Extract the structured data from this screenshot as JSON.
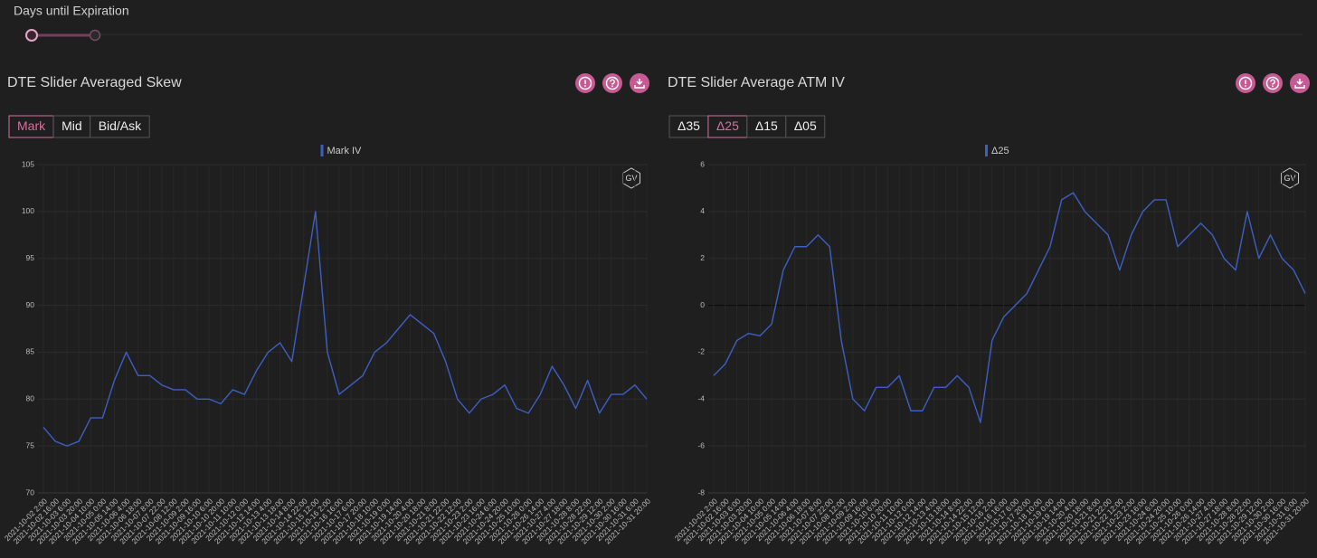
{
  "header": {
    "slider_label": "Days until Expiration"
  },
  "panels": [
    {
      "title": "DTE Slider Averaged Skew",
      "buttons": [
        "Mark",
        "Mid",
        "Bid/Ask"
      ],
      "active_button": 0,
      "watermark": "GV"
    },
    {
      "title": "DTE Slider Average ATM IV",
      "buttons": [
        "Δ35",
        "Δ25",
        "Δ15",
        "Δ05"
      ],
      "active_button": 1,
      "watermark": "GV"
    }
  ],
  "chart_data": [
    {
      "type": "line",
      "categories": [
        "2021-10-02 2:00",
        "2021-10-02 16:00",
        "2021-10-03 6:00",
        "2021-10-03 20:00",
        "2021-10-04 10:00",
        "2021-10-05 0:00",
        "2021-10-05 14:00",
        "2021-10-06 4:00",
        "2021-10-06 18:00",
        "2021-10-07 8:00",
        "2021-10-07 22:00",
        "2021-10-08 12:00",
        "2021-10-09 2:00",
        "2021-10-09 16:00",
        "2021-10-10 6:00",
        "2021-10-10 20:00",
        "2021-10-11 10:00",
        "2021-10-12 0:00",
        "2021-10-12 14:00",
        "2021-10-13 4:00",
        "2021-10-13 18:00",
        "2021-10-14 8:00",
        "2021-10-14 22:00",
        "2021-10-15 12:00",
        "2021-10-16 2:00",
        "2021-10-16 16:00",
        "2021-10-17 6:00",
        "2021-10-17 20:00",
        "2021-10-18 10:00",
        "2021-10-19 0:00",
        "2021-10-19 14:00",
        "2021-10-20 4:00",
        "2021-10-20 18:00",
        "2021-10-21 8:00",
        "2021-10-21 22:00",
        "2021-10-22 12:00",
        "2021-10-23 2:00",
        "2021-10-23 16:00",
        "2021-10-24 6:00",
        "2021-10-24 20:00",
        "2021-10-25 10:00",
        "2021-10-26 0:00",
        "2021-10-26 14:00",
        "2021-10-27 4:00",
        "2021-10-27 18:00",
        "2021-10-28 8:00",
        "2021-10-28 22:00",
        "2021-10-29 12:00",
        "2021-10-30 2:00",
        "2021-10-30 16:00",
        "2021-10-31 6:00",
        "2021-10-31 20:00"
      ],
      "series": [
        {
          "name": "Mark IV",
          "color": "#3d5fc4",
          "values": [
            77,
            75.5,
            75,
            75.5,
            78,
            78,
            82,
            85,
            82.5,
            82.5,
            81.5,
            81,
            81,
            80,
            80,
            79.5,
            81,
            80.5,
            83,
            85,
            86,
            84,
            92,
            100,
            85,
            80.5,
            81.5,
            82.5,
            85,
            86,
            87.5,
            89,
            88,
            87,
            84,
            80,
            78.5,
            80,
            80.5,
            81.5,
            79,
            78.5,
            80.5,
            83.5,
            81.5,
            79,
            82,
            78.5,
            80.5,
            80.5,
            81.5,
            80
          ]
        }
      ],
      "ylim": [
        70,
        105
      ],
      "yticks": [
        70,
        75,
        80,
        85,
        90,
        95,
        100,
        105
      ],
      "grid": true
    },
    {
      "type": "line",
      "categories": [
        "2021-10-02 2:00",
        "2021-10-02 16:00",
        "2021-10-03 6:00",
        "2021-10-03 20:00",
        "2021-10-04 10:00",
        "2021-10-05 0:00",
        "2021-10-05 14:00",
        "2021-10-06 4:00",
        "2021-10-06 18:00",
        "2021-10-07 8:00",
        "2021-10-07 22:00",
        "2021-10-08 12:00",
        "2021-10-09 2:00",
        "2021-10-09 16:00",
        "2021-10-10 6:00",
        "2021-10-10 20:00",
        "2021-10-11 10:00",
        "2021-10-12 0:00",
        "2021-10-12 14:00",
        "2021-10-13 4:00",
        "2021-10-13 18:00",
        "2021-10-14 8:00",
        "2021-10-14 22:00",
        "2021-10-15 12:00",
        "2021-10-16 2:00",
        "2021-10-16 16:00",
        "2021-10-17 6:00",
        "2021-10-17 20:00",
        "2021-10-18 10:00",
        "2021-10-19 0:00",
        "2021-10-19 14:00",
        "2021-10-20 4:00",
        "2021-10-20 18:00",
        "2021-10-21 8:00",
        "2021-10-21 22:00",
        "2021-10-22 12:00",
        "2021-10-23 2:00",
        "2021-10-23 16:00",
        "2021-10-24 6:00",
        "2021-10-24 20:00",
        "2021-10-25 10:00",
        "2021-10-26 0:00",
        "2021-10-26 14:00",
        "2021-10-27 4:00",
        "2021-10-27 18:00",
        "2021-10-28 8:00",
        "2021-10-28 22:00",
        "2021-10-29 12:00",
        "2021-10-30 2:00",
        "2021-10-30 16:00",
        "2021-10-31 6:00",
        "2021-10-31 20:00"
      ],
      "series": [
        {
          "name": "Δ25",
          "color": "#3d5fc4",
          "values": [
            -3,
            -2.5,
            -1.5,
            -1.2,
            -1.3,
            -0.8,
            1.5,
            2.5,
            2.5,
            3,
            2.5,
            -1.5,
            -4,
            -4.5,
            -3.5,
            -3.5,
            -3,
            -4.5,
            -4.5,
            -3.5,
            -3.5,
            -3,
            -3.5,
            -5,
            -1.5,
            -0.5,
            0,
            0.5,
            1.5,
            2.5,
            4.5,
            4.8,
            4,
            3.5,
            3,
            1.5,
            3,
            4,
            4.5,
            4.5,
            2.5,
            3,
            3.5,
            3,
            2,
            1.5,
            4,
            2,
            3,
            2,
            1.5,
            0.5
          ]
        }
      ],
      "ylim": [
        -8,
        6
      ],
      "yticks": [
        -8,
        -6,
        -4,
        -2,
        0,
        2,
        4,
        6
      ],
      "grid": true
    }
  ]
}
